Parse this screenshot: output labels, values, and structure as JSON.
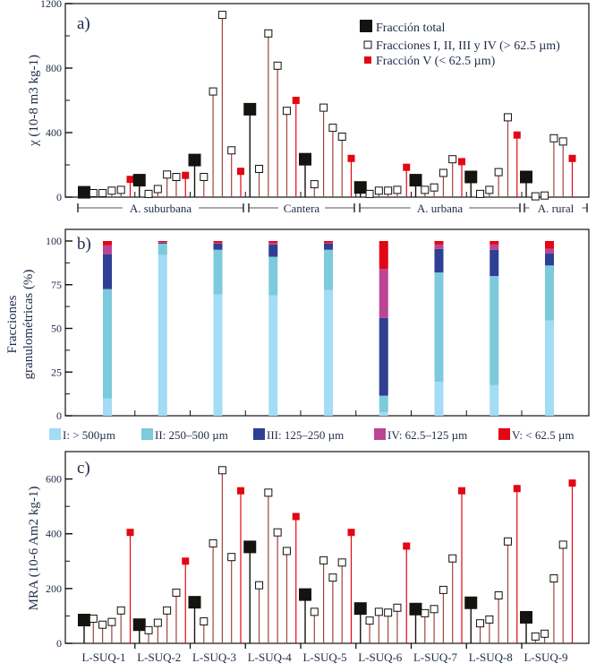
{
  "colors": {
    "total": "#151310",
    "fraction_stem": "#a0443c",
    "fraction_v": "#e30613",
    "I": "#a3dcf5",
    "II": "#7ccadb",
    "III": "#2f3f93",
    "IV": "#bb4494",
    "V": "#e30613"
  },
  "chart_data": [
    {
      "type": "scatter",
      "panel_label": "a)",
      "ylabel": "χ (10-8 m3 kg-1)",
      "ylim": [
        0,
        1200
      ],
      "yticks": [
        0,
        400,
        800,
        1200
      ],
      "legend": {
        "placement": "top-right",
        "entries": [
          "Fracción total",
          "Fracciones I, II, III y IV (> 62.5 µm)",
          "Fracción V (< 62.5 µm)"
        ]
      },
      "groups": [
        {
          "label": "A. suburbana",
          "samples": [
            1,
            2,
            3
          ]
        },
        {
          "label": "Cantera",
          "samples": [
            4,
            5
          ]
        },
        {
          "label": "A. urbana",
          "samples": [
            6,
            7,
            8
          ]
        },
        {
          "label": "A. rural",
          "samples": [
            9
          ]
        }
      ],
      "series": [
        {
          "total": 30,
          "fractions": [
            25,
            25,
            40,
            45
          ],
          "v": 110
        },
        {
          "total": 105,
          "fractions": [
            20,
            50,
            140,
            125
          ],
          "v": 135
        },
        {
          "total": 230,
          "fractions": [
            125,
            655,
            1130,
            290
          ],
          "v": 160
        },
        {
          "total": 545,
          "fractions": [
            175,
            1015,
            815,
            535
          ],
          "v": 600
        },
        {
          "total": 235,
          "fractions": [
            80,
            555,
            430,
            375
          ],
          "v": 240
        },
        {
          "total": 60,
          "fractions": [
            20,
            40,
            40,
            45
          ],
          "v": 185
        },
        {
          "total": 105,
          "fractions": [
            45,
            60,
            150,
            235
          ],
          "v": 220
        },
        {
          "total": 125,
          "fractions": [
            20,
            45,
            155,
            495
          ],
          "v": 385
        },
        {
          "total": 125,
          "fractions": [
            5,
            10,
            365,
            345
          ],
          "v": 240
        }
      ]
    },
    {
      "type": "bar",
      "stacked": true,
      "panel_label": "b)",
      "ylabel": "Fracciones granulométricas (%)",
      "ylabel_lines": [
        "Fracciones",
        "granulométricas (%)"
      ],
      "ylim": [
        0,
        100
      ],
      "yticks": [
        0,
        25,
        50,
        75,
        100
      ],
      "legend": {
        "placement": "bottom"
      },
      "series": [
        {
          "name": "I: > 500µm",
          "key": "I",
          "values": [
            10,
            92,
            69.5,
            69,
            72,
            2,
            19.5,
            17.5,
            54.5
          ]
        },
        {
          "name": "II: 250–500 µm",
          "key": "II",
          "values": [
            62.5,
            6.5,
            25.5,
            22,
            23,
            9.5,
            62.5,
            62.5,
            31.5
          ]
        },
        {
          "name": "III: 125–250 µm",
          "key": "III",
          "values": [
            20,
            0.5,
            3.5,
            7,
            3.5,
            44.5,
            13.5,
            15,
            7
          ]
        },
        {
          "name": "IV: 62.5–125 µm",
          "key": "IV",
          "values": [
            5,
            0.3,
            0.5,
            1,
            0.5,
            28,
            2.5,
            3,
            2.5
          ]
        },
        {
          "name": "V: < 62.5 µm",
          "key": "V",
          "values": [
            2.5,
            0.7,
            1,
            1,
            1,
            16,
            2,
            2,
            4.5
          ]
        }
      ]
    },
    {
      "type": "scatter",
      "panel_label": "c)",
      "ylabel": "MRA (10-6 Am2 kg-1)",
      "ylim": [
        0,
        700
      ],
      "yticks": [
        0,
        200,
        400,
        600
      ],
      "categories": [
        "L-SUQ-1",
        "L-SUQ-2",
        "L-SUQ-3",
        "L-SUQ-4",
        "L-SUQ-5",
        "L-SUQ-6",
        "L-SUQ-7",
        "L-SUQ-8",
        "L-SUQ-9"
      ],
      "series": [
        {
          "total": 85,
          "fractions": [
            90,
            68,
            78,
            120
          ],
          "v": 405
        },
        {
          "total": 68,
          "fractions": [
            48,
            75,
            120,
            185
          ],
          "v": 300
        },
        {
          "total": 150,
          "fractions": [
            80,
            365,
            632,
            315
          ],
          "v": 557
        },
        {
          "total": 352,
          "fractions": [
            212,
            550,
            405,
            337
          ],
          "v": 463
        },
        {
          "total": 178,
          "fractions": [
            115,
            303,
            240,
            295
          ],
          "v": 405
        },
        {
          "total": 127,
          "fractions": [
            83,
            115,
            112,
            130
          ],
          "v": 355
        },
        {
          "total": 125,
          "fractions": [
            110,
            125,
            195,
            310
          ],
          "v": 557
        },
        {
          "total": 148,
          "fractions": [
            73,
            87,
            175,
            372
          ],
          "v": 565
        },
        {
          "total": 95,
          "fractions": [
            25,
            35,
            237,
            360
          ],
          "v": 585
        }
      ]
    }
  ]
}
